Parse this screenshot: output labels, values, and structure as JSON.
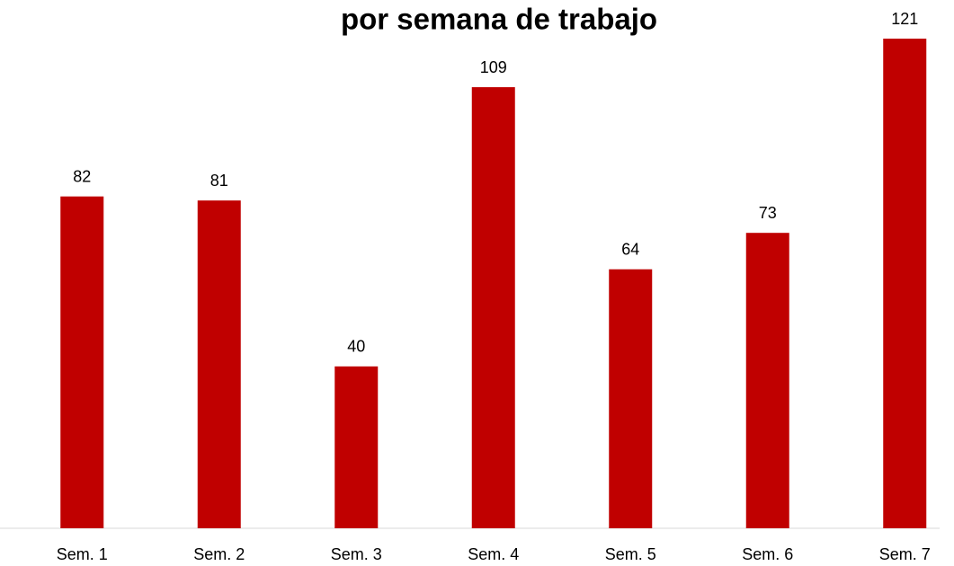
{
  "chart_data": {
    "type": "bar",
    "title": "por semana de trabajo",
    "categories": [
      "Sem. 1",
      "Sem. 2",
      "Sem. 3",
      "Sem. 4",
      "Sem. 5",
      "Sem. 6",
      "Sem. 7"
    ],
    "values": [
      82,
      81,
      40,
      109,
      64,
      73,
      121
    ],
    "color": "#c00000"
  }
}
